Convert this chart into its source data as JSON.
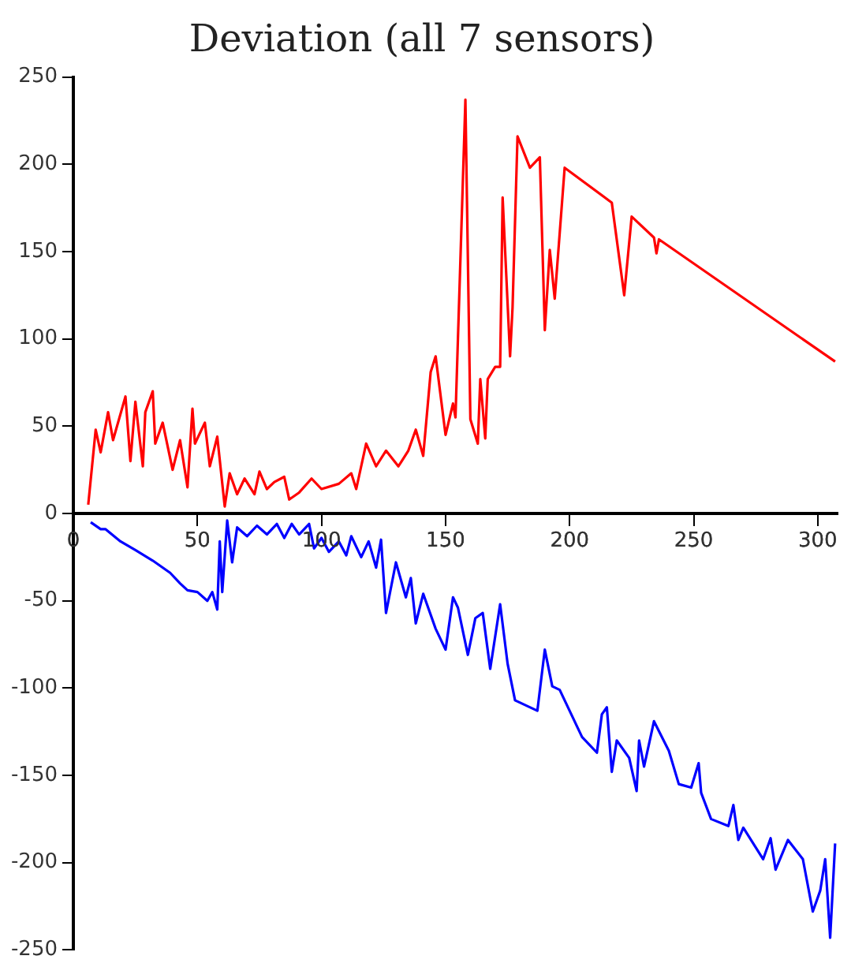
{
  "chart_data": {
    "type": "line",
    "title": "Deviation (all 7 sensors)",
    "xlim": [
      0,
      308
    ],
    "xticks": [
      0,
      50,
      100,
      150,
      200,
      250,
      300
    ],
    "ylim": [
      -250,
      250
    ],
    "yticks": [
      -250,
      -200,
      -150,
      -100,
      -50,
      0,
      50,
      100,
      150,
      200,
      250
    ],
    "grid": false,
    "legend": false,
    "marker": "none",
    "line_style": "solid",
    "series": [
      {
        "color": "#ff0000",
        "x": [
          6,
          9,
          11,
          14,
          16,
          21,
          23,
          25,
          28,
          29,
          32,
          33,
          36,
          40,
          43,
          46,
          48,
          49,
          53,
          55,
          58,
          61,
          63,
          66,
          69,
          73,
          75,
          78,
          81,
          85,
          87,
          91,
          96,
          100,
          107,
          112,
          114,
          118,
          122,
          126,
          131,
          135,
          138,
          141,
          144,
          146,
          150,
          153,
          154,
          158,
          160,
          163,
          164,
          166,
          167,
          170,
          172,
          173,
          176,
          177,
          179,
          184,
          188,
          190,
          192,
          194,
          198,
          217,
          222,
          225,
          234,
          235,
          236,
          307
        ],
        "values": [
          5,
          48,
          35,
          58,
          42,
          67,
          30,
          64,
          27,
          58,
          70,
          40,
          52,
          25,
          42,
          15,
          60,
          40,
          52,
          27,
          44,
          4,
          23,
          11,
          20,
          11,
          24,
          14,
          18,
          21,
          8,
          12,
          20,
          14,
          17,
          23,
          14,
          40,
          27,
          36,
          27,
          36,
          48,
          33,
          81,
          90,
          45,
          63,
          55,
          237,
          54,
          40,
          77,
          43,
          77,
          84,
          84,
          181,
          90,
          118,
          216,
          198,
          204,
          105,
          151,
          123,
          198,
          178,
          125,
          170,
          158,
          149,
          157,
          87
        ]
      },
      {
        "color": "#0000ff",
        "x": [
          7,
          11,
          13,
          19,
          25,
          32,
          39,
          43,
          46,
          50,
          54,
          56,
          58,
          59,
          60,
          62,
          64,
          66,
          70,
          74,
          78,
          82,
          85,
          88,
          91,
          95,
          97,
          100,
          103,
          107,
          110,
          112,
          116,
          119,
          122,
          124,
          126,
          130,
          134,
          136,
          138,
          141,
          146,
          150,
          153,
          155,
          159,
          162,
          165,
          168,
          172,
          175,
          178,
          187,
          190,
          193,
          196,
          205,
          211,
          213,
          215,
          217,
          219,
          224,
          227,
          228,
          230,
          234,
          240,
          244,
          249,
          252,
          253,
          257,
          264,
          266,
          268,
          270,
          278,
          281,
          283,
          288,
          294,
          298,
          301,
          303,
          305,
          307
        ],
        "values": [
          -5,
          -9,
          -9,
          -16,
          -21,
          -27,
          -34,
          -40,
          -44,
          -45,
          -50,
          -45,
          -55,
          -16,
          -45,
          -4,
          -28,
          -8,
          -13,
          -7,
          -12,
          -6,
          -14,
          -6,
          -12,
          -6,
          -20,
          -14,
          -22,
          -16,
          -24,
          -13,
          -25,
          -16,
          -31,
          -15,
          -57,
          -28,
          -48,
          -37,
          -63,
          -46,
          -66,
          -78,
          -48,
          -54,
          -81,
          -60,
          -57,
          -89,
          -52,
          -86,
          -107,
          -113,
          -78,
          -99,
          -101,
          -128,
          -137,
          -115,
          -111,
          -148,
          -130,
          -140,
          -159,
          -130,
          -145,
          -119,
          -136,
          -155,
          -157,
          -143,
          -160,
          -175,
          -179,
          -167,
          -187,
          -180,
          -198,
          -186,
          -204,
          -187,
          -198,
          -228,
          -216,
          -198,
          -243,
          -189
        ]
      }
    ]
  }
}
